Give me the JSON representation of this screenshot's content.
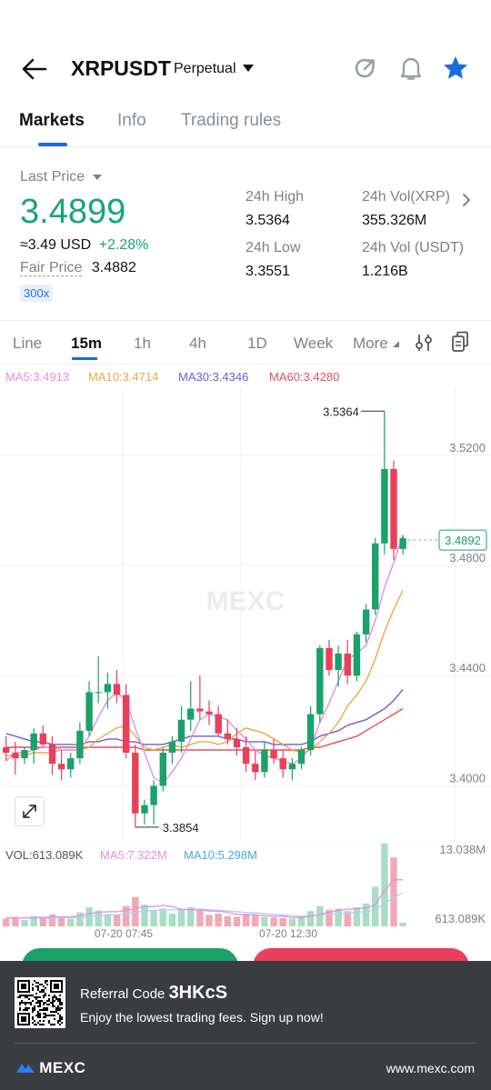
{
  "header": {
    "symbol": "XRPUSDT",
    "contract_type": "Perpetual",
    "icons": [
      "back-arrow-icon",
      "refresh-icon",
      "bell-icon",
      "star-icon"
    ]
  },
  "tabs": [
    {
      "label": "Markets",
      "active": true
    },
    {
      "label": "Info",
      "active": false
    },
    {
      "label": "Trading rules",
      "active": false
    }
  ],
  "price": {
    "last_price_label": "Last Price",
    "last_price": "3.4899",
    "approx_usd": "≈3.49 USD",
    "change_pct": "+2.28%",
    "fair_price_label": "Fair Price",
    "fair_price": "3.4882",
    "leverage": "300x",
    "high_label": "24h High",
    "high": "3.5364",
    "low_label": "24h Low",
    "low": "3.3551",
    "vol_xrp_label": "24h Vol(XRP)",
    "vol_xrp": "355.326M",
    "vol_usdt_label": "24h Vol (USDT)",
    "vol_usdt": "1.216B"
  },
  "intervals": {
    "items": [
      "Line",
      "15m",
      "1h",
      "4h",
      "1D",
      "Week",
      "More"
    ],
    "active": "15m"
  },
  "ma_legend": {
    "ma5": "MA5:3.4913",
    "ma10": "MA10:3.4714",
    "ma30": "MA30:3.4346",
    "ma60": "MA60:3.4280"
  },
  "vol_legend": {
    "vol": "VOL:613.089K",
    "ma5": "MA5:7.322M",
    "ma10": "MA10:5.298M"
  },
  "colors": {
    "up": "#1aa268",
    "down": "#e8405a",
    "ma5": "#e58ee6",
    "ma10": "#f0a640",
    "ma30": "#6a5fd6",
    "ma60": "#e05060",
    "accent": "#1c6ddb"
  },
  "chart_data": {
    "type": "candlestick",
    "y_ticks": [
      "3.5200",
      "3.4800",
      "3.4400",
      "3.4000"
    ],
    "ylim": [
      3.38,
      3.545
    ],
    "current_price_tag": "3.4892",
    "high_marker": "3.5364",
    "low_marker": "3.3854",
    "x_labels": [
      "07-20 07:45",
      "07-20 12:30"
    ],
    "watermark": "MEXC",
    "candles": [
      {
        "o": 3.414,
        "h": 3.418,
        "l": 3.409,
        "c": 3.412
      },
      {
        "o": 3.412,
        "h": 3.416,
        "l": 3.404,
        "c": 3.41
      },
      {
        "o": 3.41,
        "h": 3.414,
        "l": 3.408,
        "c": 3.413
      },
      {
        "o": 3.413,
        "h": 3.421,
        "l": 3.408,
        "c": 3.419
      },
      {
        "o": 3.419,
        "h": 3.422,
        "l": 3.414,
        "c": 3.415
      },
      {
        "o": 3.415,
        "h": 3.418,
        "l": 3.404,
        "c": 3.408
      },
      {
        "o": 3.408,
        "h": 3.413,
        "l": 3.402,
        "c": 3.406
      },
      {
        "o": 3.406,
        "h": 3.412,
        "l": 3.403,
        "c": 3.41
      },
      {
        "o": 3.41,
        "h": 3.423,
        "l": 3.408,
        "c": 3.42
      },
      {
        "o": 3.42,
        "h": 3.438,
        "l": 3.418,
        "c": 3.434
      },
      {
        "o": 3.434,
        "h": 3.447,
        "l": 3.43,
        "c": 3.434
      },
      {
        "o": 3.434,
        "h": 3.441,
        "l": 3.428,
        "c": 3.437
      },
      {
        "o": 3.437,
        "h": 3.442,
        "l": 3.43,
        "c": 3.433
      },
      {
        "o": 3.433,
        "h": 3.437,
        "l": 3.41,
        "c": 3.412
      },
      {
        "o": 3.412,
        "h": 3.415,
        "l": 3.385,
        "c": 3.39
      },
      {
        "o": 3.39,
        "h": 3.395,
        "l": 3.386,
        "c": 3.393
      },
      {
        "o": 3.393,
        "h": 3.402,
        "l": 3.386,
        "c": 3.4
      },
      {
        "o": 3.4,
        "h": 3.414,
        "l": 3.398,
        "c": 3.412
      },
      {
        "o": 3.412,
        "h": 3.418,
        "l": 3.408,
        "c": 3.416
      },
      {
        "o": 3.416,
        "h": 3.429,
        "l": 3.412,
        "c": 3.424
      },
      {
        "o": 3.424,
        "h": 3.438,
        "l": 3.42,
        "c": 3.428
      },
      {
        "o": 3.428,
        "h": 3.44,
        "l": 3.424,
        "c": 3.427
      },
      {
        "o": 3.427,
        "h": 3.431,
        "l": 3.422,
        "c": 3.426
      },
      {
        "o": 3.426,
        "h": 3.429,
        "l": 3.418,
        "c": 3.419
      },
      {
        "o": 3.419,
        "h": 3.424,
        "l": 3.415,
        "c": 3.417
      },
      {
        "o": 3.417,
        "h": 3.421,
        "l": 3.411,
        "c": 3.414
      },
      {
        "o": 3.414,
        "h": 3.418,
        "l": 3.405,
        "c": 3.408
      },
      {
        "o": 3.408,
        "h": 3.413,
        "l": 3.402,
        "c": 3.405
      },
      {
        "o": 3.405,
        "h": 3.416,
        "l": 3.403,
        "c": 3.413
      },
      {
        "o": 3.413,
        "h": 3.417,
        "l": 3.408,
        "c": 3.41
      },
      {
        "o": 3.41,
        "h": 3.413,
        "l": 3.403,
        "c": 3.406
      },
      {
        "o": 3.406,
        "h": 3.41,
        "l": 3.402,
        "c": 3.408
      },
      {
        "o": 3.408,
        "h": 3.414,
        "l": 3.406,
        "c": 3.413
      },
      {
        "o": 3.413,
        "h": 3.429,
        "l": 3.411,
        "c": 3.426
      },
      {
        "o": 3.426,
        "h": 3.451,
        "l": 3.423,
        "c": 3.45
      },
      {
        "o": 3.45,
        "h": 3.453,
        "l": 3.44,
        "c": 3.442
      },
      {
        "o": 3.442,
        "h": 3.451,
        "l": 3.436,
        "c": 3.448
      },
      {
        "o": 3.448,
        "h": 3.453,
        "l": 3.437,
        "c": 3.44
      },
      {
        "o": 3.44,
        "h": 3.456,
        "l": 3.438,
        "c": 3.455
      },
      {
        "o": 3.455,
        "h": 3.466,
        "l": 3.452,
        "c": 3.464
      },
      {
        "o": 3.464,
        "h": 3.49,
        "l": 3.462,
        "c": 3.488
      },
      {
        "o": 3.488,
        "h": 3.536,
        "l": 3.484,
        "c": 3.515
      },
      {
        "o": 3.515,
        "h": 3.518,
        "l": 3.482,
        "c": 3.486
      },
      {
        "o": 3.486,
        "h": 3.491,
        "l": 3.484,
        "c": 3.4899
      }
    ],
    "ma5": [
      3.409,
      3.412,
      3.412,
      3.413,
      3.414,
      3.414,
      3.413,
      3.413,
      3.413,
      3.418,
      3.425,
      3.431,
      3.434,
      3.431,
      3.421,
      3.412,
      3.403,
      3.401,
      3.405,
      3.41,
      3.417,
      3.424,
      3.426,
      3.425,
      3.424,
      3.42,
      3.417,
      3.413,
      3.411,
      3.41,
      3.409,
      3.408,
      3.41,
      3.414,
      3.423,
      3.43,
      3.438,
      3.446,
      3.448,
      3.451,
      3.46,
      3.472,
      3.481,
      3.491
    ],
    "ma10": [
      3.411,
      3.411,
      3.411,
      3.412,
      3.412,
      3.412,
      3.413,
      3.413,
      3.413,
      3.414,
      3.417,
      3.419,
      3.421,
      3.422,
      3.418,
      3.414,
      3.413,
      3.414,
      3.415,
      3.414,
      3.415,
      3.416,
      3.416,
      3.415,
      3.416,
      3.419,
      3.421,
      3.42,
      3.419,
      3.417,
      3.415,
      3.413,
      3.412,
      3.413,
      3.416,
      3.419,
      3.423,
      3.429,
      3.433,
      3.438,
      3.446,
      3.456,
      3.464,
      3.471
    ],
    "ma30": [
      3.419,
      3.418,
      3.417,
      3.416,
      3.416,
      3.415,
      3.415,
      3.415,
      3.415,
      3.416,
      3.416,
      3.417,
      3.417,
      3.416,
      3.416,
      3.415,
      3.415,
      3.415,
      3.416,
      3.417,
      3.418,
      3.418,
      3.418,
      3.418,
      3.417,
      3.417,
      3.416,
      3.416,
      3.416,
      3.415,
      3.415,
      3.415,
      3.415,
      3.416,
      3.418,
      3.419,
      3.42,
      3.422,
      3.423,
      3.424,
      3.426,
      3.428,
      3.431,
      3.435
    ],
    "ma60": [
      3.414,
      3.414,
      3.414,
      3.414,
      3.414,
      3.414,
      3.414,
      3.414,
      3.414,
      3.414,
      3.414,
      3.414,
      3.414,
      3.414,
      3.414,
      3.413,
      3.413,
      3.413,
      3.413,
      3.413,
      3.413,
      3.413,
      3.413,
      3.413,
      3.413,
      3.413,
      3.413,
      3.413,
      3.413,
      3.413,
      3.413,
      3.413,
      3.413,
      3.414,
      3.414,
      3.415,
      3.416,
      3.417,
      3.418,
      3.42,
      3.422,
      3.424,
      3.426,
      3.428
    ],
    "volume": {
      "y_ticks": [
        "13.038M",
        "613.089K"
      ],
      "values": [
        1.2,
        1.5,
        1.0,
        1.6,
        1.3,
        1.9,
        1.4,
        1.2,
        2.2,
        3.0,
        2.5,
        1.9,
        1.8,
        3.2,
        4.6,
        3.4,
        2.5,
        2.8,
        2.0,
        2.7,
        3.0,
        2.5,
        1.8,
        2.0,
        1.6,
        1.5,
        2.0,
        1.7,
        1.5,
        1.4,
        1.3,
        1.2,
        1.5,
        2.4,
        3.2,
        2.6,
        2.8,
        2.4,
        3.0,
        3.6,
        6.2,
        13.0,
        10.8,
        0.6
      ],
      "ma5": [
        1.3,
        1.3,
        1.3,
        1.4,
        1.4,
        1.5,
        1.5,
        1.5,
        1.7,
        2.0,
        2.2,
        2.3,
        2.3,
        2.5,
        2.8,
        3.1,
        3.1,
        3.3,
        3.1,
        2.7,
        2.6,
        2.6,
        2.4,
        2.4,
        2.2,
        1.9,
        1.8,
        1.8,
        1.7,
        1.6,
        1.6,
        1.4,
        1.4,
        1.6,
        1.9,
        2.2,
        2.5,
        2.7,
        2.8,
        2.9,
        3.4,
        5.6,
        7.3,
        7.3
      ],
      "ma10": [
        1.3,
        1.3,
        1.3,
        1.3,
        1.3,
        1.3,
        1.4,
        1.4,
        1.4,
        1.6,
        1.7,
        1.8,
        1.8,
        2.0,
        2.2,
        2.4,
        2.5,
        2.6,
        2.6,
        2.6,
        2.7,
        2.7,
        2.6,
        2.5,
        2.4,
        2.3,
        2.2,
        2.1,
        2.0,
        1.9,
        1.8,
        1.7,
        1.6,
        1.7,
        1.8,
        1.9,
        2.0,
        2.1,
        2.2,
        2.3,
        2.6,
        3.6,
        4.5,
        5.3
      ]
    }
  },
  "buttons": {
    "long": "",
    "short": ""
  },
  "banner": {
    "referral_label": "Referral Code",
    "referral_code": "3HKcS",
    "subtitle": "Enjoy the lowest trading fees. Sign up now!",
    "brand": "MEXC",
    "website": "www.mexc.com"
  }
}
